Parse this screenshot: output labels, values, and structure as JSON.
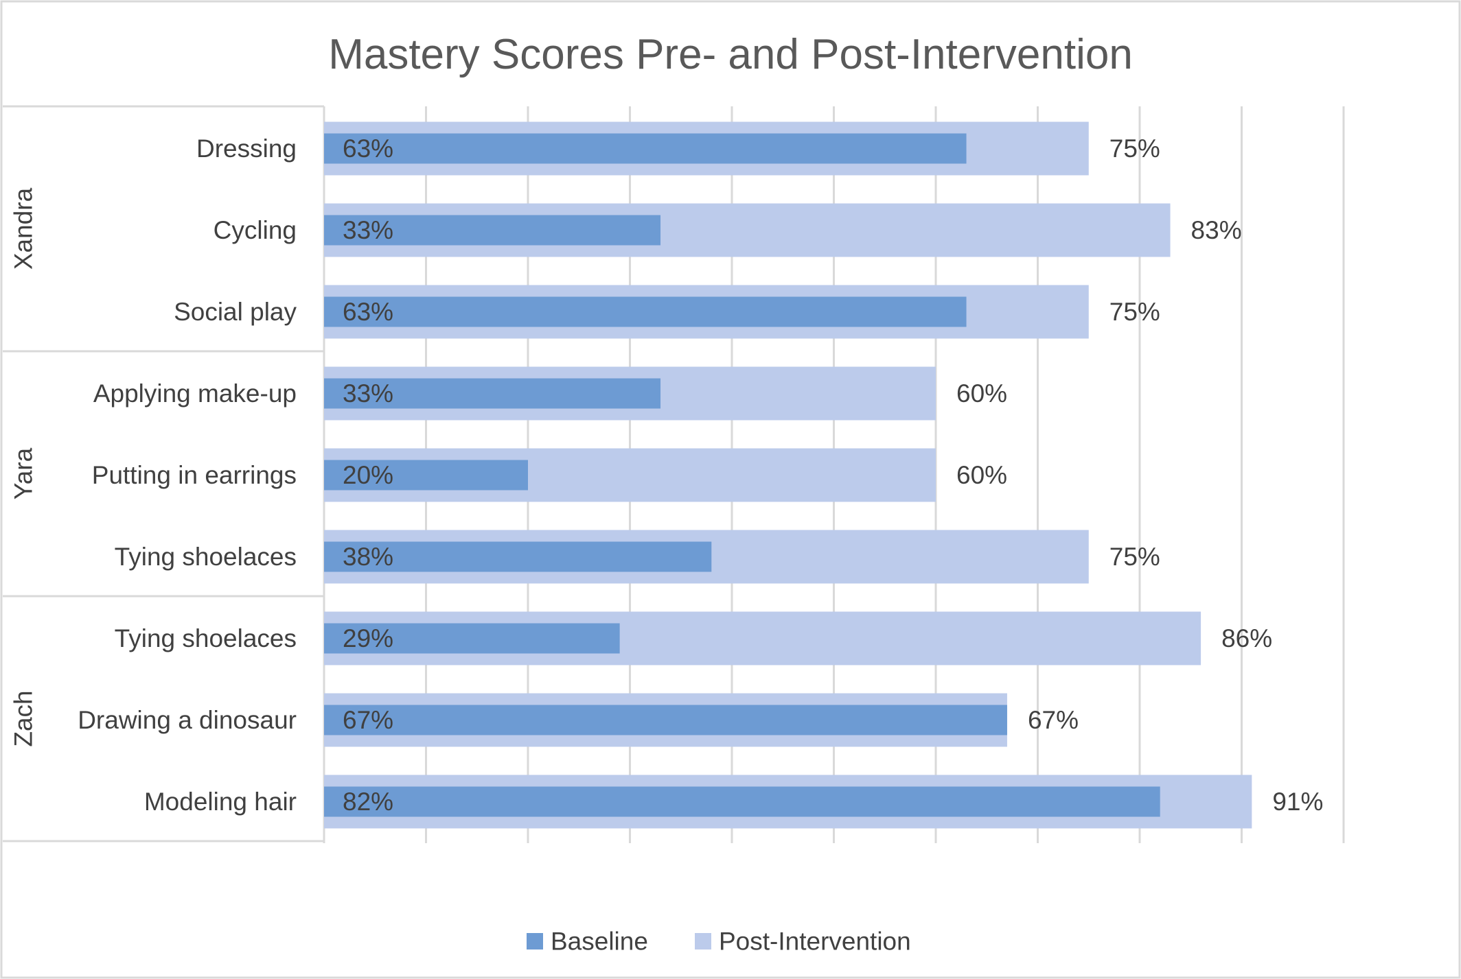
{
  "chart_data": {
    "type": "bar",
    "orientation": "horizontal",
    "title": "Mastery Scores Pre- and Post-Intervention",
    "xlim": [
      0,
      100
    ],
    "grid": true,
    "legend_position": "bottom",
    "groups": [
      {
        "name": "Xandra",
        "categories": [
          "Dressing",
          "Cycling",
          "Social play"
        ]
      },
      {
        "name": "Yara",
        "categories": [
          "Applying make-up",
          "Putting in earrings",
          "Tying shoelaces"
        ]
      },
      {
        "name": "Zach",
        "categories": [
          "Tying shoelaces",
          "Drawing a dinosaur",
          "Modeling hair"
        ]
      }
    ],
    "series": [
      {
        "name": "Baseline",
        "color": "#6d9bd3",
        "values": [
          63,
          33,
          63,
          33,
          20,
          38,
          29,
          67,
          82
        ],
        "labels": [
          "63%",
          "33%",
          "63%",
          "33%",
          "20%",
          "38%",
          "29%",
          "67%",
          "82%"
        ]
      },
      {
        "name": "Post-Intervention",
        "color": "#bccbeb",
        "values": [
          75,
          83,
          75,
          60,
          60,
          75,
          86,
          67,
          91
        ],
        "labels": [
          "75%",
          "83%",
          "75%",
          "60%",
          "60%",
          "75%",
          "86%",
          "67%",
          "91%"
        ]
      }
    ]
  }
}
